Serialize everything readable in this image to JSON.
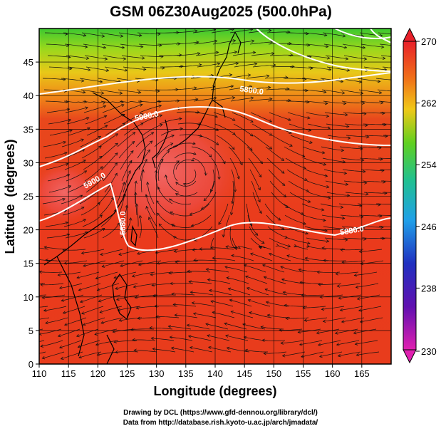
{
  "chart_data": {
    "type": "heatmap",
    "title": "GSM 06Z30Aug2025 (500.0hPa)",
    "xlabel": "Longitude (degrees)",
    "ylabel": "Latitude  (degrees)",
    "xlim": [
      110,
      170
    ],
    "ylim": [
      0,
      50
    ],
    "x_ticks": [
      "110",
      "115",
      "120",
      "125",
      "130",
      "135",
      "140",
      "145",
      "150",
      "155",
      "160",
      "165"
    ],
    "y_ticks": [
      "0",
      "5",
      "10",
      "15",
      "20",
      "25",
      "30",
      "35",
      "40",
      "45"
    ],
    "colorbar": {
      "range": [
        230,
        270
      ],
      "ticks": [
        "270",
        "262",
        "254",
        "246",
        "238",
        "230"
      ]
    },
    "contour_labels": [
      "5800.0",
      "5900.0",
      "5880.0",
      "5880.0",
      "5900.0"
    ],
    "field_description": "temperature (K) shaded with streamlines and geopotential height contours"
  },
  "credits": {
    "line1": "Drawing by DCL (https://www.gfd-dennou.org/library/dcl/)",
    "line2": "Data from http://database.rish.kyoto-u.ac.jp/arch/jmadata/"
  },
  "colors": {
    "warm": "#e8341c",
    "hot": "#f05a5a",
    "mid": "#f07018",
    "green": "#40c030",
    "contour": "#ffffff"
  }
}
